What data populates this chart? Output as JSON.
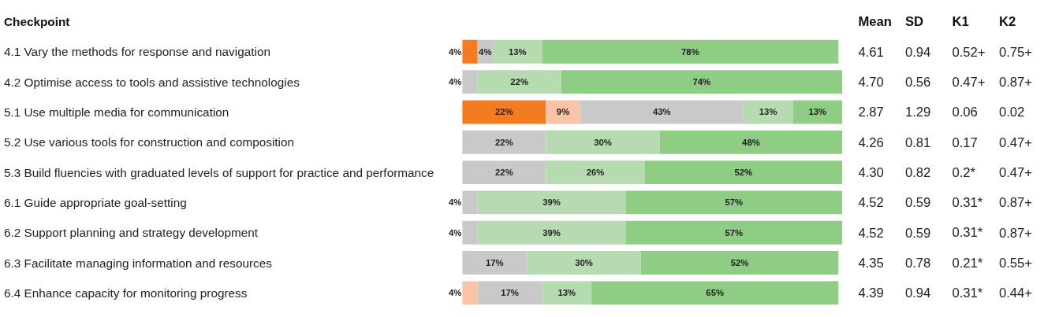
{
  "chart_data": [
    {
      "type": "bar",
      "orientation": "horizontal",
      "stacked": true,
      "ylabel": "Checkpoint",
      "grid": false,
      "tick_labels": "y",
      "categories": [
        "4.1 Vary the methods for response and navigation",
        "4.2 Optimise access to tools and assistive technologies",
        "5.1 Use multiple media for communication",
        "5.2 Use various tools for construction and composition",
        "5.3 Build fluencies with graduated levels of support for practice and performance",
        "6.1 Guide appropriate goal-setting",
        "6.2 Support planning and strategy development",
        "6.3 Facilitate managing information and resources",
        "6.4 Enhance capacity for monitoring progress"
      ],
      "series": [
        {
          "color": "#f47c20",
          "values": [
            4,
            null,
            22,
            null,
            null,
            null,
            null,
            null,
            null
          ],
          "value_labels": [
            "4%",
            null,
            "22%",
            null,
            null,
            null,
            null,
            null,
            null
          ]
        },
        {
          "color": "#f9c4a5",
          "values": [
            null,
            null,
            9,
            null,
            null,
            null,
            null,
            null,
            4
          ],
          "value_labels": [
            null,
            null,
            "9%",
            null,
            null,
            null,
            null,
            null,
            "4%"
          ]
        },
        {
          "color": "#c9c9c9",
          "values": [
            4,
            4,
            43,
            22,
            22,
            4,
            4,
            17,
            17
          ],
          "value_labels": [
            "4%",
            "4%",
            "43%",
            "22%",
            "22%",
            "4%",
            "4%",
            "17%",
            "17%"
          ]
        },
        {
          "color": "#b7dbb0",
          "values": [
            13,
            22,
            13,
            30,
            26,
            39,
            39,
            30,
            13
          ],
          "value_labels": [
            "13%",
            "22%",
            "13%",
            "30%",
            "26%",
            "39%",
            "39%",
            "30%",
            "13%"
          ]
        },
        {
          "color": "#90cd84",
          "values": [
            78,
            74,
            13,
            48,
            52,
            57,
            57,
            52,
            65
          ],
          "value_labels": [
            "78%",
            "74%",
            "13%",
            "48%",
            "52%",
            "57%",
            "57%",
            "52%",
            "65%"
          ]
        }
      ]
    },
    {
      "type": "other",
      "categories": [
        "Mean",
        "SD",
        "K1",
        "K2"
      ],
      "cell_labels": [
        [
          "4.61",
          "0.94",
          "0.52+",
          "0.75+"
        ],
        [
          "4.70",
          "0.56",
          "0.47+",
          "0.87+"
        ],
        [
          "2.87",
          "1.29",
          "0.06",
          "0.02"
        ],
        [
          "4.26",
          "0.81",
          "0.17",
          "0.47+"
        ],
        [
          "4.30",
          "0.82",
          "0.2*",
          "0.47+"
        ],
        [
          "4.52",
          "0.59",
          "0.31*",
          "0.87+"
        ],
        [
          "4.52",
          "0.59",
          "0.31*",
          "0.87+"
        ],
        [
          "4.35",
          "0.78",
          "0.21*",
          "0.55+"
        ],
        [
          "4.39",
          "0.94",
          "0.31*",
          "0.44+"
        ]
      ]
    }
  ]
}
